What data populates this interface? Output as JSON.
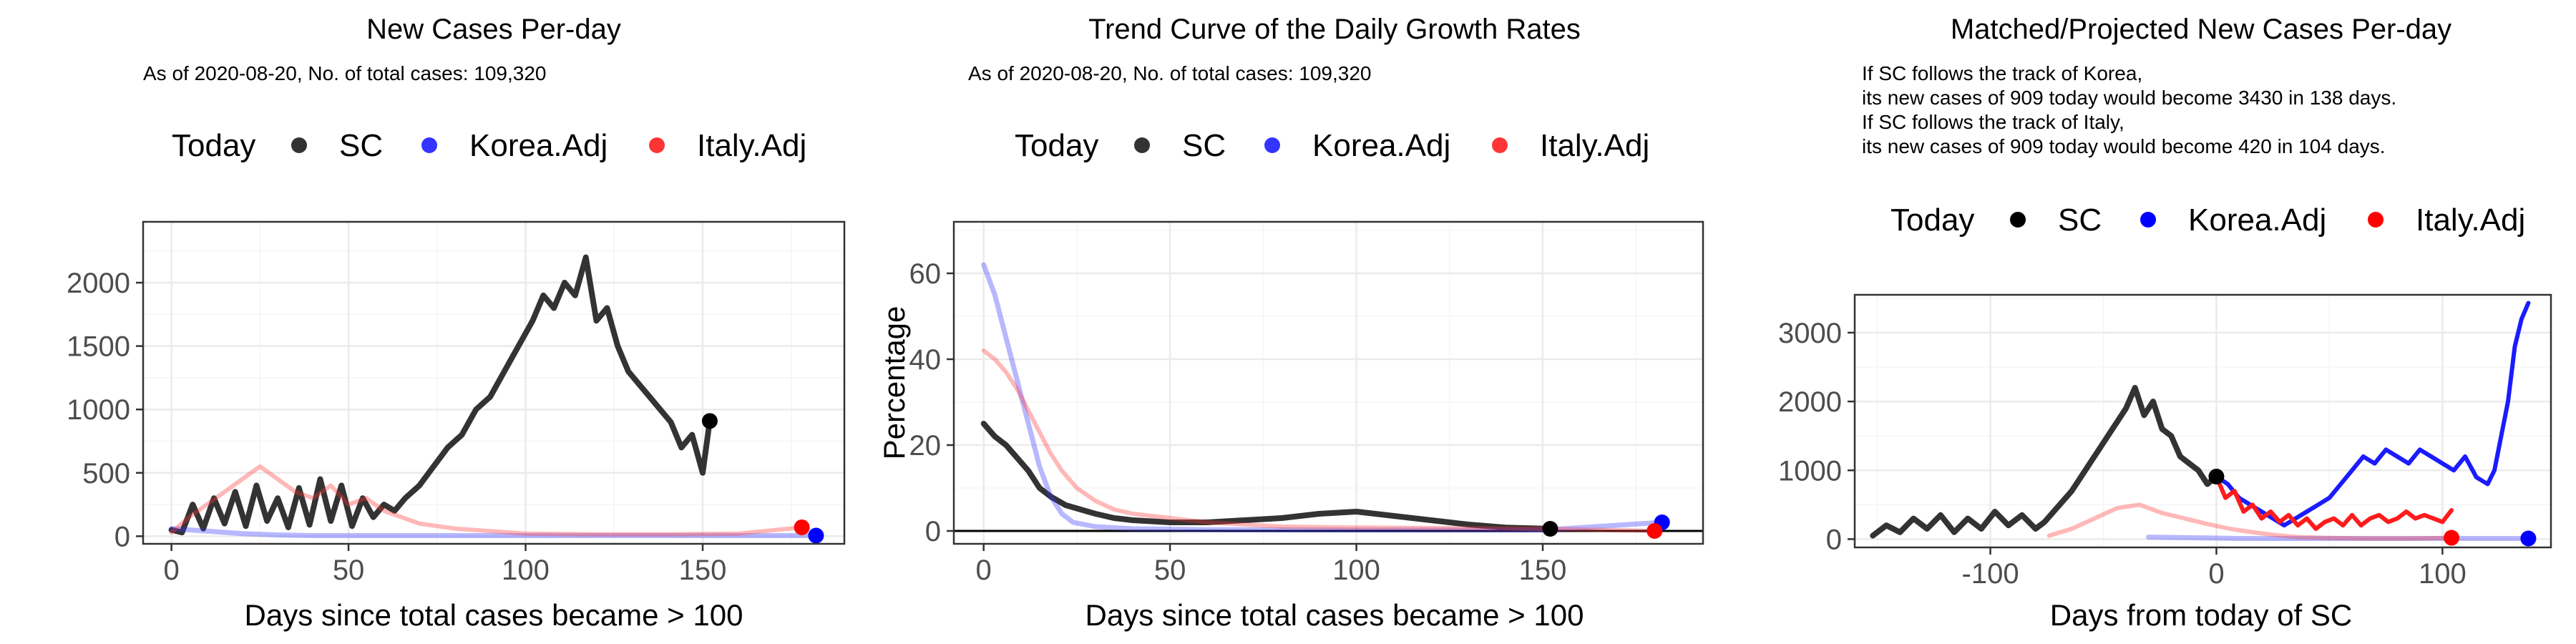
{
  "charts": [
    {
      "title": "New Cases Per-day",
      "subtitle_lines": [
        "As of 2020-08-20, No. of total cases: 109,320"
      ],
      "legend": {
        "title": "Today",
        "items": [
          {
            "name": "SC",
            "color": "#333333"
          },
          {
            "name": "Korea.Adj",
            "color": "#3434ff"
          },
          {
            "name": "Italy.Adj",
            "color": "#ff3434"
          }
        ]
      },
      "xlabel": "Days since total cases became > 100",
      "ylabel": "",
      "xticks": [
        0,
        50,
        100,
        150
      ],
      "yticks": [
        0,
        500,
        1000,
        1500,
        2000
      ],
      "xlim": [
        -8,
        190
      ],
      "ylim": [
        -60,
        2480
      ]
    },
    {
      "title": "Trend Curve of the Daily Growth Rates",
      "subtitle_lines": [
        "As of 2020-08-20, No. of total cases: 109,320"
      ],
      "legend": {
        "title": "Today",
        "items": [
          {
            "name": "SC",
            "color": "#333333"
          },
          {
            "name": "Korea.Adj",
            "color": "#3434ff"
          },
          {
            "name": "Italy.Adj",
            "color": "#ff3434"
          }
        ]
      },
      "xlabel": "Days since total cases became > 100",
      "ylabel": "Percentage",
      "xticks": [
        0,
        50,
        100,
        150
      ],
      "yticks": [
        0,
        20,
        40,
        60
      ],
      "xlim": [
        -8,
        193
      ],
      "ylim": [
        -3,
        72
      ]
    },
    {
      "title": "Matched/Projected New Cases Per-day",
      "subtitle_lines": [
        "If SC follows the track of Korea,",
        "its new cases of 909 today would become 3430 in 138 days.",
        "If SC follows the track of Italy,",
        "its new cases of 909 today would become 420 in 104 days."
      ],
      "legend": {
        "title": "Today",
        "items": [
          {
            "name": "SC",
            "color": "#000000"
          },
          {
            "name": "Korea.Adj",
            "color": "#0000ff"
          },
          {
            "name": "Italy.Adj",
            "color": "#ff0000"
          }
        ]
      },
      "xlabel": "Days from today of SC",
      "ylabel": "",
      "xticks": [
        -100,
        0,
        100
      ],
      "yticks": [
        0,
        1000,
        2000,
        3000
      ],
      "xlim": [
        -160,
        148
      ],
      "ylim": [
        -120,
        3550
      ]
    }
  ],
  "chart_data": [
    {
      "type": "line",
      "series": [
        {
          "name": "SC",
          "x": [
            0,
            3,
            6,
            9,
            12,
            15,
            18,
            21,
            24,
            27,
            30,
            33,
            36,
            39,
            42,
            45,
            48,
            51,
            54,
            57,
            60,
            63,
            66,
            70,
            74,
            78,
            82,
            86,
            90,
            94,
            98,
            102,
            105,
            108,
            111,
            114,
            117,
            120,
            123,
            126,
            129,
            132,
            135,
            138,
            141,
            144,
            147,
            150,
            152
          ],
          "y": [
            50,
            30,
            250,
            60,
            300,
            100,
            350,
            80,
            400,
            120,
            300,
            70,
            380,
            90,
            450,
            120,
            400,
            80,
            300,
            150,
            250,
            200,
            300,
            400,
            550,
            700,
            800,
            1000,
            1100,
            1300,
            1500,
            1700,
            1900,
            1800,
            2000,
            1900,
            2200,
            1700,
            1800,
            1500,
            1300,
            1200,
            1100,
            1000,
            900,
            700,
            800,
            500,
            909
          ]
        },
        {
          "name": "Korea.Adj",
          "x": [
            0,
            10,
            20,
            30,
            40,
            60,
            80,
            100,
            120,
            140,
            160,
            182
          ],
          "y": [
            60,
            40,
            20,
            10,
            5,
            5,
            5,
            5,
            5,
            5,
            5,
            5
          ]
        },
        {
          "name": "Italy.Adj",
          "x": [
            0,
            5,
            10,
            15,
            20,
            25,
            30,
            35,
            40,
            45,
            50,
            55,
            60,
            65,
            70,
            80,
            90,
            100,
            120,
            140,
            160,
            178
          ],
          "y": [
            30,
            150,
            250,
            350,
            450,
            550,
            450,
            350,
            300,
            400,
            250,
            300,
            200,
            150,
            100,
            60,
            40,
            20,
            15,
            15,
            20,
            70
          ]
        }
      ],
      "today_points": [
        {
          "name": "SC",
          "x": 152,
          "y": 909
        },
        {
          "name": "Korea.Adj",
          "x": 182,
          "y": 5
        },
        {
          "name": "Italy.Adj",
          "x": 178,
          "y": 70
        }
      ]
    },
    {
      "type": "line",
      "series": [
        {
          "name": "SC",
          "x": [
            0,
            3,
            6,
            9,
            12,
            15,
            18,
            22,
            26,
            30,
            35,
            40,
            50,
            60,
            70,
            80,
            90,
            100,
            110,
            120,
            130,
            140,
            152
          ],
          "y": [
            25,
            22,
            20,
            17,
            14,
            10,
            8,
            6,
            5,
            4,
            3,
            2.5,
            2,
            2,
            2.5,
            3,
            4,
            4.5,
            3.5,
            2.5,
            1.5,
            0.8,
            0.5
          ]
        },
        {
          "name": "Korea.Adj",
          "x": [
            0,
            3,
            6,
            9,
            12,
            15,
            18,
            21,
            24,
            30,
            40,
            60,
            100,
            150,
            182
          ],
          "y": [
            62,
            55,
            45,
            35,
            25,
            15,
            8,
            4,
            2,
            1,
            0.5,
            0.3,
            0.2,
            0.2,
            2
          ]
        },
        {
          "name": "Italy.Adj",
          "x": [
            0,
            3,
            6,
            9,
            12,
            15,
            18,
            21,
            25,
            30,
            35,
            40,
            50,
            60,
            80,
            100,
            150,
            180
          ],
          "y": [
            42,
            40,
            37,
            33,
            28,
            23,
            18,
            14,
            10,
            7,
            5,
            4,
            3,
            2,
            1,
            0.8,
            0.5,
            0
          ]
        }
      ],
      "today_points": [
        {
          "name": "SC",
          "x": 152,
          "y": 0.5
        },
        {
          "name": "Korea.Adj",
          "x": 182,
          "y": 2
        },
        {
          "name": "Italy.Adj",
          "x": 180,
          "y": 0
        }
      ]
    },
    {
      "type": "line",
      "series": [
        {
          "name": "SC",
          "x": [
            -152,
            -146,
            -140,
            -134,
            -128,
            -122,
            -116,
            -110,
            -104,
            -98,
            -92,
            -86,
            -80,
            -76,
            -72,
            -68,
            -64,
            -60,
            -56,
            -52,
            -48,
            -44,
            -40,
            -36,
            -32,
            -28,
            -24,
            -20,
            -16,
            -12,
            -8,
            -4,
            0
          ],
          "y": [
            50,
            200,
            100,
            300,
            150,
            350,
            100,
            300,
            150,
            400,
            200,
            350,
            150,
            250,
            400,
            550,
            700,
            900,
            1100,
            1300,
            1500,
            1700,
            1900,
            2200,
            1800,
            2000,
            1600,
            1500,
            1200,
            1100,
            1000,
            800,
            909
          ]
        },
        {
          "name": "Korea.Adj",
          "x": [
            -30,
            -20,
            -10,
            0,
            10,
            20,
            30,
            40,
            50,
            60,
            70,
            80,
            90,
            100,
            110,
            120,
            125,
            130,
            134,
            138
          ],
          "y": [
            30,
            25,
            20,
            15,
            10,
            10,
            10,
            10,
            10,
            10,
            10,
            10,
            10,
            10,
            10,
            10,
            10,
            10,
            10,
            10
          ]
        },
        {
          "name": "Korea.Adj (projected)",
          "x": [
            0,
            5,
            10,
            15,
            20,
            25,
            30,
            35,
            40,
            45,
            50,
            55,
            60,
            65,
            70,
            75,
            80,
            85,
            90,
            95,
            100,
            105,
            110,
            115,
            120,
            123,
            126,
            129,
            132,
            135,
            138
          ],
          "y": [
            909,
            800,
            600,
            500,
            400,
            300,
            200,
            300,
            400,
            500,
            600,
            800,
            1000,
            1200,
            1100,
            1300,
            1200,
            1100,
            1300,
            1200,
            1100,
            1000,
            1200,
            900,
            800,
            1000,
            1500,
            2000,
            2800,
            3200,
            3430
          ]
        },
        {
          "name": "Italy.Adj",
          "x": [
            -74,
            -64,
            -54,
            -44,
            -34,
            -24,
            -14,
            -4,
            6,
            16,
            26,
            36,
            46,
            56,
            66,
            76,
            86,
            96,
            104
          ],
          "y": [
            50,
            150,
            300,
            450,
            500,
            380,
            300,
            220,
            150,
            100,
            60,
            30,
            20,
            15,
            10,
            10,
            10,
            15,
            20
          ]
        },
        {
          "name": "Italy.Adj (projected)",
          "x": [
            0,
            4,
            8,
            12,
            16,
            20,
            24,
            28,
            32,
            36,
            40,
            44,
            48,
            52,
            56,
            60,
            64,
            68,
            72,
            76,
            80,
            84,
            88,
            92,
            96,
            100,
            104
          ],
          "y": [
            909,
            600,
            700,
            400,
            500,
            300,
            400,
            250,
            350,
            200,
            300,
            150,
            250,
            300,
            200,
            350,
            200,
            300,
            350,
            250,
            300,
            400,
            300,
            350,
            300,
            250,
            420
          ]
        }
      ],
      "today_points": [
        {
          "name": "SC",
          "x": 0,
          "y": 909
        },
        {
          "name": "Korea.Adj",
          "x": 138,
          "y": 10
        },
        {
          "name": "Italy.Adj",
          "x": 104,
          "y": 20
        }
      ]
    }
  ]
}
